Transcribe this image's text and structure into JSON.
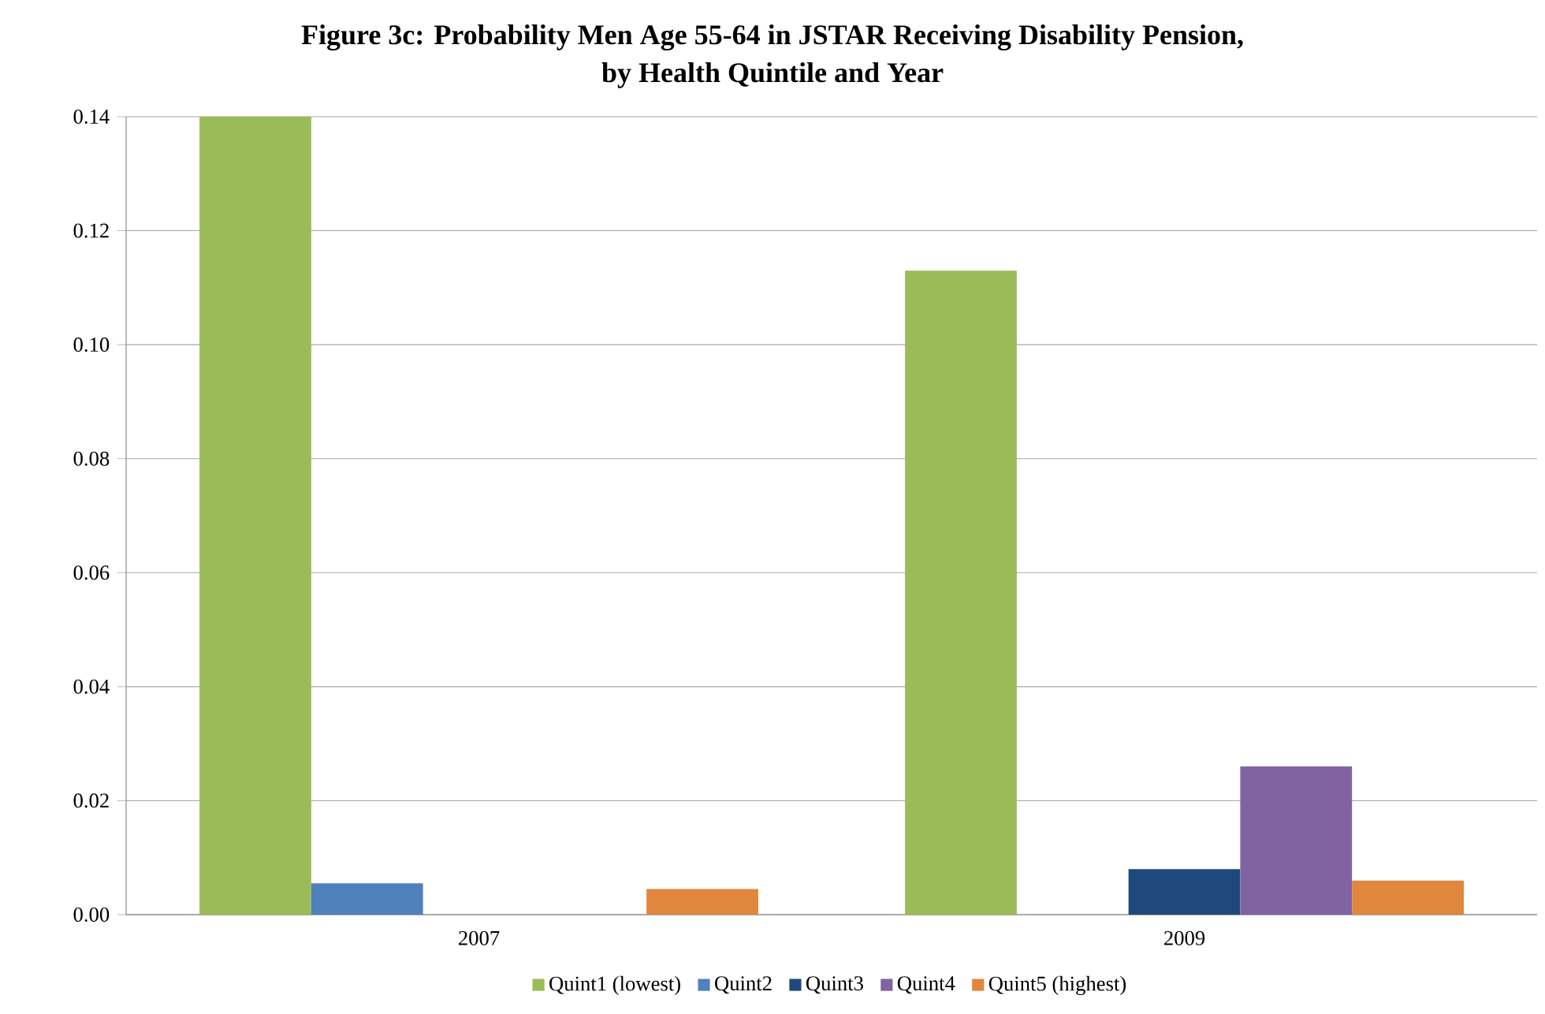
{
  "chart_data": {
    "type": "bar",
    "title": "**Figure 3c: Probability Men Age 55-64 in JSTAR Receiving Disability Pension,**",
    "subtitle": "**by Health Quintile and Year**",
    "categories": [
      "2007",
      "2009"
    ],
    "series": [
      {
        "name": "Quint1 (lowest)",
        "color": "#9bbb59",
        "values": [
          0.14,
          0.113
        ]
      },
      {
        "name": "Quint2",
        "color": "#4f81bd",
        "values": [
          0.0055,
          0
        ]
      },
      {
        "name": "Quint3",
        "color": "#1f497d",
        "values": [
          0,
          0.008
        ]
      },
      {
        "name": "Quint4",
        "color": "#8064a2",
        "values": [
          0,
          0.026
        ]
      },
      {
        "name": "Quint5 (highest)",
        "color": "#e0863d",
        "values": [
          0.0045,
          0.006
        ]
      }
    ],
    "ylim": [
      0,
      0.14
    ],
    "yticks": [
      {
        "value": 0,
        "label": "0.00"
      },
      {
        "value": 0.02,
        "label": "0.02"
      },
      {
        "value": 0.04,
        "label": "0.04"
      },
      {
        "value": 0.06,
        "label": "0.06"
      },
      {
        "value": 0.08,
        "label": "0.08"
      },
      {
        "value": 0.1,
        "label": "0.10"
      },
      {
        "value": 0.12,
        "label": "0.12"
      },
      {
        "value": 0.14,
        "label": "0.14"
      }
    ],
    "grid": "y",
    "legend": "bottom"
  }
}
